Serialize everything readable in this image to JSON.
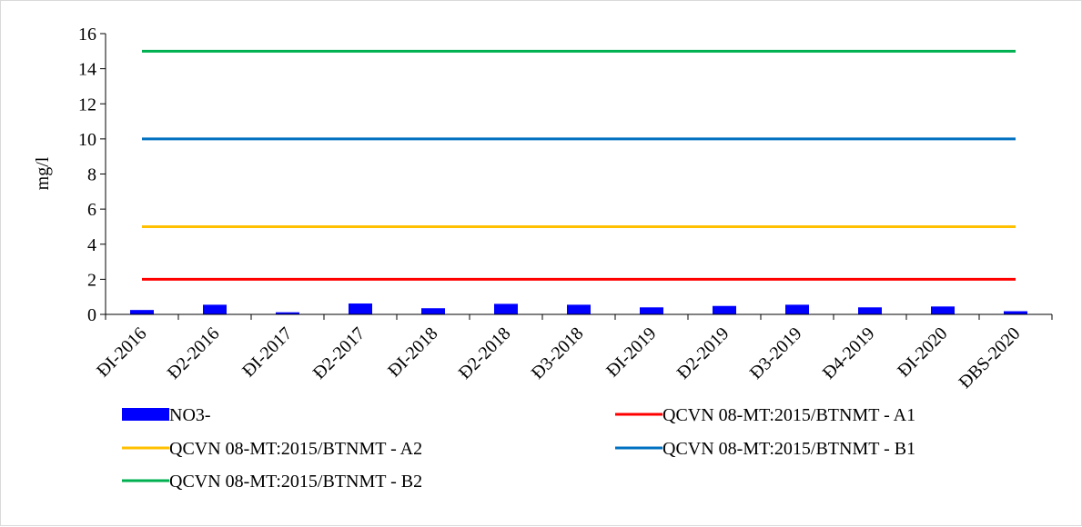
{
  "chart_data": {
    "type": "bar",
    "ylabel": "mg/l",
    "ylim": [
      0,
      16
    ],
    "yticks": [
      0,
      2,
      4,
      6,
      8,
      10,
      12,
      14,
      16
    ],
    "grid": false,
    "legend_position": "bottom",
    "categories": [
      "ĐI-2016",
      "Đ2-2016",
      "ĐI-2017",
      "Đ2-2017",
      "ĐI-2018",
      "Đ2-2018",
      "Đ3-2018",
      "ĐI-2019",
      "Đ2-2019",
      "Đ3-2019",
      "Đ4-2019",
      "ĐI-2020",
      "ĐBS-2020"
    ],
    "series": [
      {
        "name": "NO3-",
        "kind": "bar",
        "color": "#0000ff",
        "values": [
          0.25,
          0.55,
          0.12,
          0.62,
          0.35,
          0.6,
          0.55,
          0.4,
          0.48,
          0.55,
          0.4,
          0.45,
          0.18
        ]
      },
      {
        "name": "QCVN 08-MT:2015/BTNMT - A1",
        "kind": "line",
        "color": "#ff0000",
        "value": 2
      },
      {
        "name": "QCVN 08-MT:2015/BTNMT - A2",
        "kind": "line",
        "color": "#ffc000",
        "value": 5
      },
      {
        "name": "QCVN 08-MT:2015/BTNMT - B1",
        "kind": "line",
        "color": "#0070c0",
        "value": 10
      },
      {
        "name": "QCVN 08-MT:2015/BTNMT - B2",
        "kind": "line",
        "color": "#00b050",
        "value": 15
      }
    ]
  }
}
